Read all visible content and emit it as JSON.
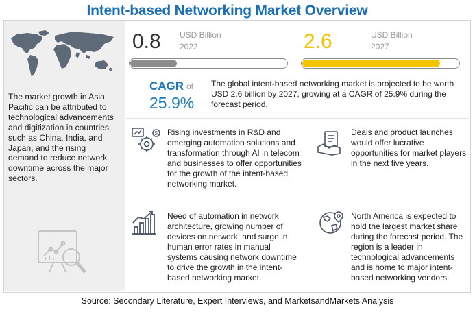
{
  "title": "Intent-based Networking Market Overview",
  "left": {
    "text": "The market growth in Asia Pacific can be attributed to technological advancements and digitization in countries, such as China, India, and Japan, and the rising demand to reduce network downtime across the major sectors."
  },
  "market_2022": {
    "value": "0.8",
    "unit": "USD Billion",
    "year": "2022",
    "fill_fraction": 0.3,
    "color": "#8c8c8c"
  },
  "market_2027": {
    "value": "2.6",
    "unit": "USD Billion",
    "year": "2027",
    "fill_fraction": 0.88,
    "color": "#f5c400"
  },
  "cagr": {
    "label": "CAGR",
    "of": "of",
    "value": "25.9%"
  },
  "summary": "The global intent-based networking market is projected to be worth USD 2.6 billion by 2027, growing at a CAGR of 25.9% during the forecast period.",
  "points": [
    {
      "icon": "investment-gears-icon",
      "text": "Rising investments in R&D and emerging automation solutions and transformation through AI in telecom and businesses to offer opportunities for the growth of the intent-based networking market."
    },
    {
      "icon": "handshake-document-icon",
      "text": "Deals and product launches would offer lucrative opportunities for market players in the next five years."
    },
    {
      "icon": "growth-chart-icon",
      "text": "Need of automation in network architecture, growing number of devices on network, and surge in human error rates in manual systems causing network downtime to drive the growth in the intent-based networking market."
    },
    {
      "icon": "globe-pin-icon",
      "text": "North America is expected to hold the largest market share during the forecast period. The region is a leader in technological advancements and is home to major intent-based networking vendors."
    }
  ],
  "source": "Source: Secondary Literature, Expert Interviews, and MarketsandMarkets Analysis"
}
